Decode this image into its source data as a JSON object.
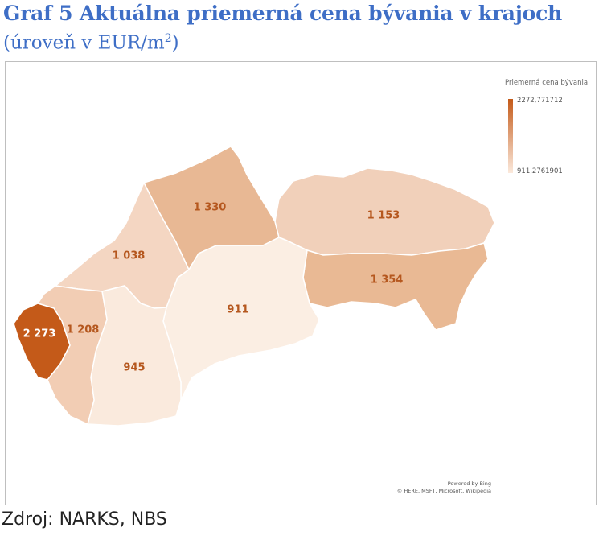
{
  "title": "Graf 5 Aktuálna priemerná cena bývania v krajoch",
  "subtitle": {
    "text": "(úroveň v EUR/m",
    "sup": "2",
    "close": ")"
  },
  "legend": {
    "title": "Priemerná cena bývania",
    "max": "2272,771712",
    "min": "911,2761901",
    "color_max": "#c45a19",
    "color_min": "#fbe9dc"
  },
  "credits": {
    "line1": "Powered by Bing",
    "line2": "© HERE, MSFT, Microsoft, Wikipedia"
  },
  "source": "Zdroj: NARKS, NBS",
  "regions": [
    {
      "id": "ba",
      "label": "2 273",
      "color": "#c45a19"
    },
    {
      "id": "tt",
      "label": "1 208",
      "color": "#f2cdb4"
    },
    {
      "id": "tn",
      "label": "1 038",
      "color": "#f4d6c2"
    },
    {
      "id": "nr",
      "label": "945",
      "color": "#faeadd"
    },
    {
      "id": "za",
      "label": "1 330",
      "color": "#e8b894"
    },
    {
      "id": "bb",
      "label": "911",
      "color": "#fbeee3"
    },
    {
      "id": "po",
      "label": "1 153",
      "color": "#f1d0ba"
    },
    {
      "id": "ke",
      "label": "1 354",
      "color": "#e9b994"
    }
  ]
}
